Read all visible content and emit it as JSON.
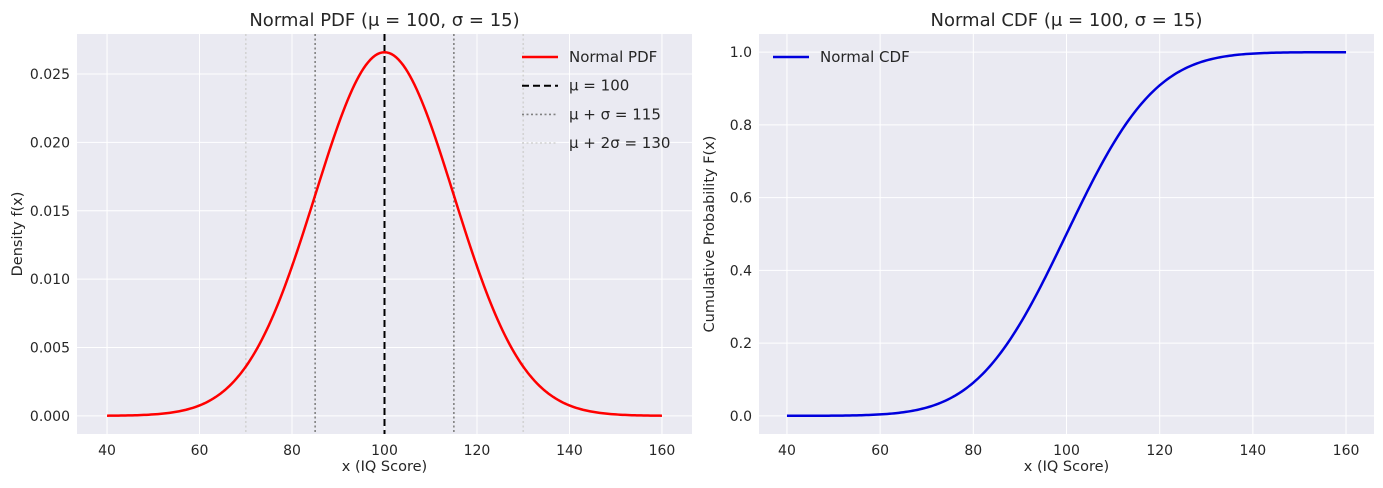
{
  "chart_data": [
    {
      "type": "line",
      "title": "Normal PDF (μ = 100, σ = 15)",
      "xlabel": "x (IQ Score)",
      "ylabel": "Density f(x)",
      "xlim": [
        33.5,
        166.5
      ],
      "ylim": [
        -0.00133,
        0.02793
      ],
      "xticks": [
        40,
        60,
        80,
        100,
        120,
        140,
        160
      ],
      "yticks": [
        0.0,
        0.005,
        0.01,
        0.015,
        0.02,
        0.025
      ],
      "ytick_labels": [
        "0.000",
        "0.005",
        "0.010",
        "0.015",
        "0.020",
        "0.025"
      ],
      "grid": true,
      "legend_position": "top-right",
      "series": [
        {
          "name": "Normal PDF",
          "kind": "normal_pdf",
          "mu": 100,
          "sigma": 15,
          "x_range": [
            40,
            160
          ],
          "color": "#ff0000",
          "style": "solid"
        }
      ],
      "vlines": [
        {
          "name": "μ = 100",
          "values": [
            100
          ],
          "color": "#000000",
          "style": "dashed"
        },
        {
          "name": "μ + σ = 115",
          "values": [
            85,
            115
          ],
          "color": "#808080",
          "style": "dotted"
        },
        {
          "name": "μ + 2σ = 130",
          "values": [
            70,
            130
          ],
          "color": "#d3d3d3",
          "style": "dotted"
        }
      ]
    },
    {
      "type": "line",
      "title": "Normal CDF (μ = 100, σ = 15)",
      "xlabel": "x (IQ Score)",
      "ylabel": "Cumulative Probability F(x)",
      "xlim": [
        34,
        166
      ],
      "ylim": [
        -0.05,
        1.05
      ],
      "xticks": [
        40,
        60,
        80,
        100,
        120,
        140,
        160
      ],
      "yticks": [
        0.0,
        0.2,
        0.4,
        0.6,
        0.8,
        1.0
      ],
      "ytick_labels": [
        "0.0",
        "0.2",
        "0.4",
        "0.6",
        "0.8",
        "1.0"
      ],
      "grid": true,
      "legend_position": "top-left",
      "series": [
        {
          "name": "Normal CDF",
          "kind": "normal_cdf",
          "mu": 100,
          "sigma": 15,
          "x_range": [
            40,
            160
          ],
          "color": "#0000dd",
          "style": "solid"
        }
      ]
    }
  ]
}
